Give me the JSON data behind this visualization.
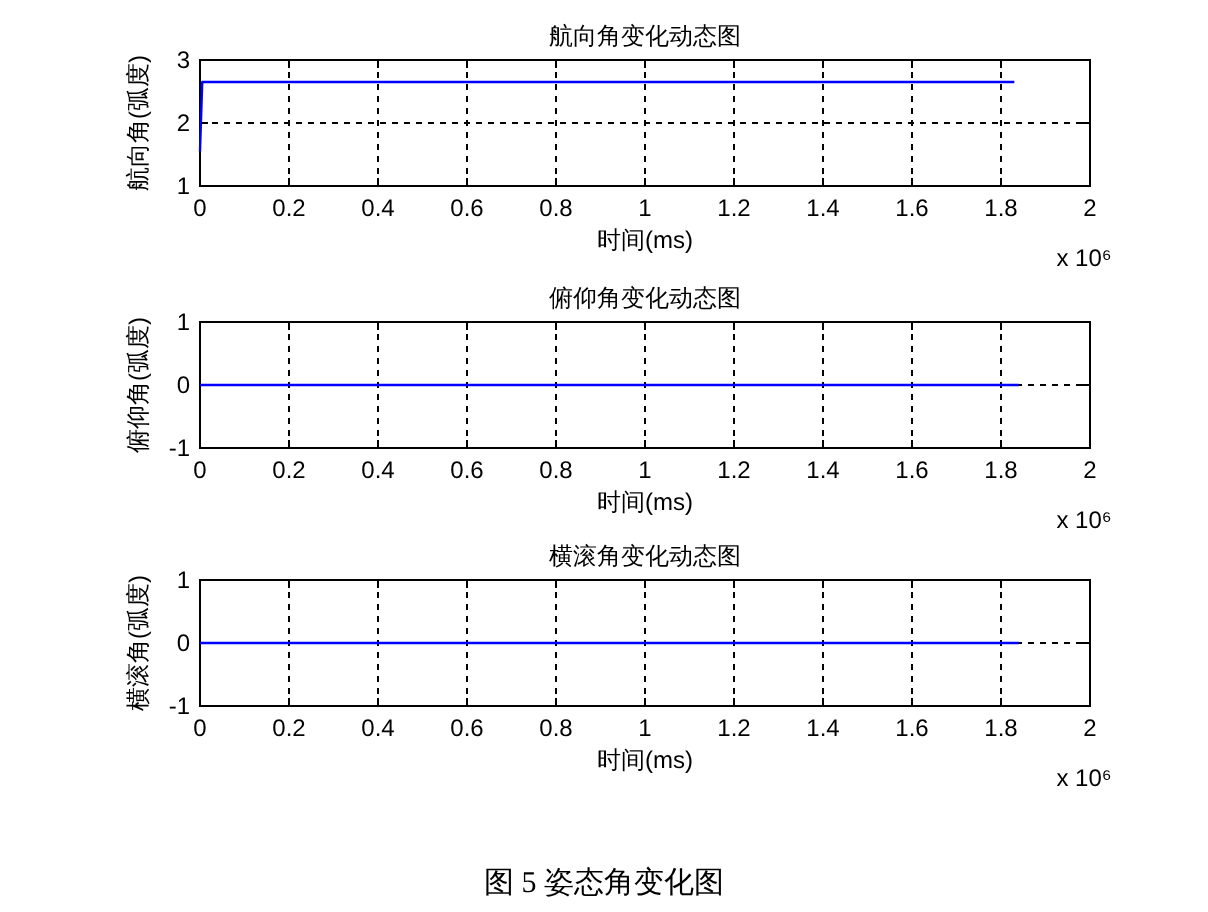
{
  "chart_data": [
    {
      "type": "line",
      "title": "航向角变化动态图",
      "xlabel": "时间(ms)",
      "ylabel": "航向角(弧度)",
      "xlim": [
        0,
        2
      ],
      "xticks": [
        0,
        0.2,
        0.4,
        0.6,
        0.8,
        1,
        1.2,
        1.4,
        1.6,
        1.8,
        2
      ],
      "ylim": [
        1,
        3
      ],
      "yticks": [
        1,
        2,
        3
      ],
      "grid": true,
      "line_style": "solid",
      "series": [
        {
          "color": "#0000ff",
          "x": [
            0,
            0.005,
            1.83
          ],
          "values": [
            1.55,
            2.65,
            2.65
          ]
        }
      ],
      "annotations": [
        "x 10⁶"
      ]
    },
    {
      "type": "line",
      "title": "俯仰角变化动态图",
      "xlabel": "时间(ms)",
      "ylabel": "俯仰角(弧度)",
      "xlim": [
        0,
        2
      ],
      "xticks": [
        0,
        0.2,
        0.4,
        0.6,
        0.8,
        1,
        1.2,
        1.4,
        1.6,
        1.8,
        2
      ],
      "ylim": [
        -1,
        1
      ],
      "yticks": [
        -1,
        0,
        1
      ],
      "grid": true,
      "line_style": "solid",
      "series": [
        {
          "color": "#0000ff",
          "x": [
            0,
            1.84
          ],
          "values": [
            0,
            0
          ]
        }
      ],
      "annotations": [
        "x 10⁶"
      ]
    },
    {
      "type": "line",
      "title": "横滚角变化动态图",
      "xlabel": "时间(ms)",
      "ylabel": "横滚角(弧度)",
      "xlim": [
        0,
        2
      ],
      "xticks": [
        0,
        0.2,
        0.4,
        0.6,
        0.8,
        1,
        1.2,
        1.4,
        1.6,
        1.8,
        2
      ],
      "ylim": [
        -1,
        1
      ],
      "yticks": [
        -1,
        0,
        1
      ],
      "grid": true,
      "line_style": "solid",
      "series": [
        {
          "color": "#0000ff",
          "x": [
            0,
            1.84
          ],
          "values": [
            0,
            0
          ]
        }
      ],
      "annotations": [
        "x 10⁶",
        "图 5  姿态角变化图"
      ]
    }
  ]
}
